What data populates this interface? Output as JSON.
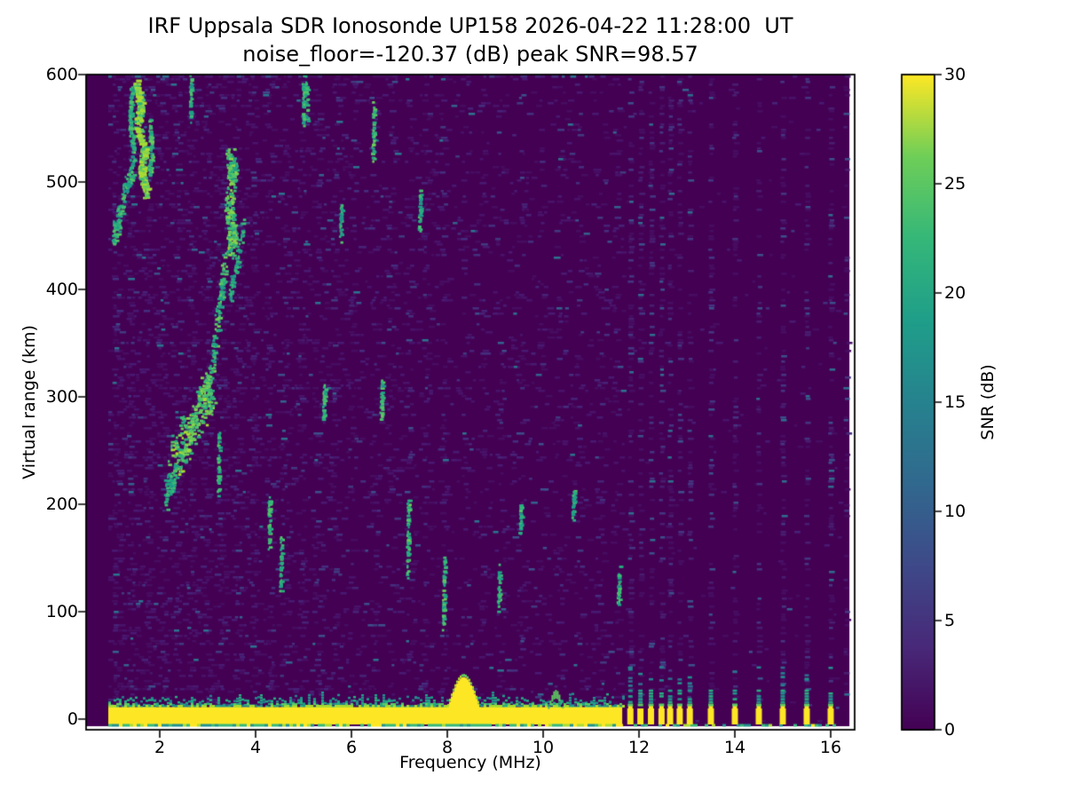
{
  "chart_data": {
    "type": "heatmap",
    "title": "IRF Uppsala SDR Ionosonde UP158 2026-04-22 11:28:00  UT",
    "subtitle": "noise_floor=-120.37 (dB) peak SNR=98.57",
    "station": "UP158",
    "timestamp_ut": "2026-04-22 11:28:00 UT",
    "noise_floor_db": -120.37,
    "peak_snr_db": 98.57,
    "xlabel": "Frequency (MHz)",
    "ylabel": "Virtual range (km)",
    "colorbar_label": "SNR (dB)",
    "colormap": "viridis",
    "xlim": [
      0.46,
      16.5
    ],
    "ylim": [
      -10,
      600
    ],
    "xticks": [
      2,
      4,
      6,
      8,
      10,
      12,
      14,
      16
    ],
    "yticks": [
      0,
      100,
      200,
      300,
      400,
      500,
      600
    ],
    "colorbar_ticks": [
      0,
      5,
      10,
      15,
      20,
      25,
      30
    ],
    "colorbar_range": [
      0,
      30
    ],
    "viridis_stops": [
      [
        0.0,
        "#440154"
      ],
      [
        0.125,
        "#482878"
      ],
      [
        0.25,
        "#3e4989"
      ],
      [
        0.375,
        "#31688e"
      ],
      [
        0.5,
        "#26828e"
      ],
      [
        0.625,
        "#1f9e89"
      ],
      [
        0.75,
        "#35b779"
      ],
      [
        0.875,
        "#6ece58"
      ],
      [
        1.0,
        "#fde725"
      ]
    ],
    "sweep": {
      "continuous_mhz": [
        1.0,
        11.65
      ],
      "discrete_mhz": [
        11.82,
        12.03,
        12.25,
        12.47,
        12.65,
        12.85,
        13.06,
        13.5,
        14.0,
        14.5,
        15.0,
        15.5,
        16.0
      ],
      "data_end_mhz": 16.39,
      "faint_rfi_column_mhz": 16.32
    },
    "ground_echo_band": {
      "range_km": [
        -6,
        12
      ],
      "fringe_top_km": 25,
      "bump": {
        "mhz": [
          8.0,
          8.65
        ],
        "top_km": 28
      },
      "minor_bump": {
        "mhz": [
          10.1,
          10.4
        ],
        "top_km": 16
      }
    },
    "rfi_streaks_mhz": [
      1.05,
      1.38,
      1.72,
      2.05,
      2.33,
      2.64,
      2.96,
      3.27,
      3.6,
      3.92,
      4.26,
      4.6,
      4.94,
      5.28,
      5.64,
      6.0,
      6.44,
      6.8,
      7.16,
      7.52,
      7.9,
      8.34,
      8.7,
      9.1,
      9.5,
      9.9,
      10.3,
      10.72,
      11.14,
      11.5
    ],
    "echo_traces": [
      {
        "name": "f-trace-upper-bright",
        "points": [
          [
            1.48,
            592
          ],
          [
            1.58,
            572
          ],
          [
            1.5,
            552
          ],
          [
            1.66,
            530
          ],
          [
            1.58,
            508
          ],
          [
            1.7,
            490
          ]
        ],
        "n": 300,
        "jf": 0.05,
        "jkm": 5,
        "b": 0.95
      },
      {
        "name": "strand-left",
        "points": [
          [
            1.4,
            590
          ],
          [
            1.36,
            555
          ],
          [
            1.44,
            528
          ]
        ],
        "n": 90,
        "jf": 0.03,
        "jkm": 5,
        "b": 0.55
      },
      {
        "name": "strand-right",
        "points": [
          [
            1.76,
            556
          ],
          [
            1.82,
            530
          ],
          [
            1.76,
            506
          ]
        ],
        "n": 70,
        "jf": 0.03,
        "jkm": 5,
        "b": 0.6
      },
      {
        "name": "descend-to-1mhz",
        "points": [
          [
            1.44,
            522
          ],
          [
            1.26,
            492
          ],
          [
            1.1,
            462
          ],
          [
            1.02,
            448
          ]
        ],
        "n": 130,
        "jf": 0.04,
        "jkm": 9,
        "b": 0.5
      },
      {
        "name": "cusp-column",
        "points": [
          [
            3.44,
            532
          ],
          [
            3.5,
            506
          ],
          [
            3.43,
            478
          ],
          [
            3.5,
            452
          ],
          [
            3.44,
            436
          ]
        ],
        "n": 240,
        "jf": 0.09,
        "jkm": 7,
        "b": 0.7
      },
      {
        "name": "cusp-branch",
        "points": [
          [
            3.36,
            428
          ],
          [
            3.22,
            382
          ],
          [
            3.08,
            335
          ],
          [
            2.98,
            300
          ]
        ],
        "n": 150,
        "jf": 0.05,
        "jkm": 10,
        "b": 0.6
      },
      {
        "name": "diag-faint",
        "points": [
          [
            3.74,
            468
          ],
          [
            3.58,
            424
          ],
          [
            3.44,
            390
          ]
        ],
        "n": 70,
        "jf": 0.04,
        "jkm": 8,
        "b": 0.45
      },
      {
        "name": "lower-cluster",
        "points": [
          [
            2.26,
            238
          ],
          [
            2.48,
            258
          ],
          [
            2.7,
            278
          ],
          [
            2.92,
            298
          ],
          [
            3.04,
            306
          ]
        ],
        "n": 280,
        "jf": 0.11,
        "jkm": 20,
        "b": 0.75
      },
      {
        "name": "cluster-tail",
        "points": [
          [
            2.1,
            206
          ],
          [
            2.28,
            228
          ]
        ],
        "n": 70,
        "jf": 0.06,
        "jkm": 12,
        "b": 0.5
      },
      {
        "name": "streak",
        "points": [
          [
            3.2,
            208
          ],
          [
            3.22,
            270
          ]
        ],
        "n": 55,
        "jf": 0.02,
        "jkm": 6,
        "b": 0.55
      },
      {
        "name": "streak",
        "points": [
          [
            2.62,
            560
          ],
          [
            2.64,
            600
          ]
        ],
        "n": 40,
        "jf": 0.02,
        "jkm": 6,
        "b": 0.5
      },
      {
        "name": "streak",
        "points": [
          [
            4.27,
            160
          ],
          [
            4.27,
            205
          ]
        ],
        "n": 45,
        "jf": 0.02,
        "jkm": 6,
        "b": 0.6
      },
      {
        "name": "streak",
        "points": [
          [
            4.5,
            120
          ],
          [
            4.52,
            168
          ]
        ],
        "n": 40,
        "jf": 0.02,
        "jkm": 6,
        "b": 0.55
      },
      {
        "name": "streak",
        "points": [
          [
            4.98,
            556
          ],
          [
            4.98,
            596
          ]
        ],
        "n": 40,
        "jf": 0.02,
        "jkm": 6,
        "b": 0.55
      },
      {
        "name": "streak",
        "points": [
          [
            5.05,
            556
          ],
          [
            5.05,
            598
          ]
        ],
        "n": 30,
        "jf": 0.02,
        "jkm": 6,
        "b": 0.5
      },
      {
        "name": "streak",
        "points": [
          [
            5.4,
            282
          ],
          [
            5.42,
            308
          ]
        ],
        "n": 35,
        "jf": 0.02,
        "jkm": 6,
        "b": 0.55
      },
      {
        "name": "streak",
        "points": [
          [
            5.75,
            448
          ],
          [
            5.77,
            478
          ]
        ],
        "n": 30,
        "jf": 0.02,
        "jkm": 6,
        "b": 0.5
      },
      {
        "name": "streak",
        "points": [
          [
            6.43,
            525
          ],
          [
            6.45,
            572
          ]
        ],
        "n": 45,
        "jf": 0.02,
        "jkm": 6,
        "b": 0.6
      },
      {
        "name": "streak",
        "points": [
          [
            6.6,
            285
          ],
          [
            6.62,
            314
          ]
        ],
        "n": 35,
        "jf": 0.02,
        "jkm": 6,
        "b": 0.55
      },
      {
        "name": "streak",
        "points": [
          [
            7.15,
            136
          ],
          [
            7.17,
            202
          ]
        ],
        "n": 55,
        "jf": 0.02,
        "jkm": 6,
        "b": 0.6
      },
      {
        "name": "streak",
        "points": [
          [
            7.4,
            455
          ],
          [
            7.42,
            492
          ]
        ],
        "n": 35,
        "jf": 0.02,
        "jkm": 6,
        "b": 0.5
      },
      {
        "name": "streak",
        "points": [
          [
            7.9,
            88
          ],
          [
            7.92,
            150
          ]
        ],
        "n": 55,
        "jf": 0.02,
        "jkm": 6,
        "b": 0.6
      },
      {
        "name": "streak",
        "points": [
          [
            9.05,
            104
          ],
          [
            9.07,
            142
          ]
        ],
        "n": 40,
        "jf": 0.02,
        "jkm": 6,
        "b": 0.55
      },
      {
        "name": "streak",
        "points": [
          [
            9.5,
            172
          ],
          [
            9.52,
            198
          ]
        ],
        "n": 30,
        "jf": 0.02,
        "jkm": 6,
        "b": 0.5
      },
      {
        "name": "streak",
        "points": [
          [
            10.6,
            188
          ],
          [
            10.62,
            212
          ]
        ],
        "n": 30,
        "jf": 0.02,
        "jkm": 6,
        "b": 0.5
      },
      {
        "name": "streak",
        "points": [
          [
            11.55,
            106
          ],
          [
            11.57,
            140
          ]
        ],
        "n": 35,
        "jf": 0.02,
        "jkm": 6,
        "b": 0.55
      }
    ]
  }
}
